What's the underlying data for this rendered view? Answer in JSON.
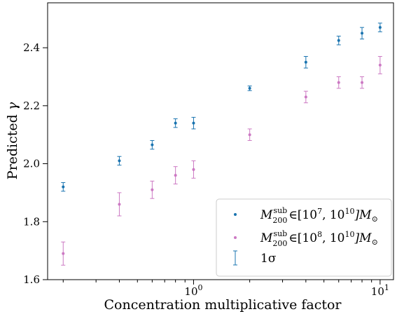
{
  "chart_data": {
    "type": "scatter",
    "xlabel": "Concentration multiplicative factor",
    "ylabel_text": "Predicted ",
    "ylabel_symbol": "γ",
    "xscale": "log",
    "xlim": [
      0.165,
      11.8
    ],
    "ylim": [
      1.6,
      2.555
    ],
    "x_tick_labels": [
      {
        "value": 1,
        "base": "10",
        "exp": "0"
      },
      {
        "value": 10,
        "base": "10",
        "exp": "1"
      }
    ],
    "y_ticks": [
      1.6,
      1.8,
      2.0,
      2.2,
      2.4
    ],
    "y_tick_labels": [
      "1.6",
      "1.8",
      "2.0",
      "2.2",
      "2.4"
    ],
    "grid": false,
    "legend_position": "lower-right",
    "series": [
      {
        "name": "M_200^sub ∈ [10^7, 10^10] M_⊙",
        "color": "#1a74b0",
        "x": [
          0.2,
          0.4,
          0.6,
          0.8,
          1.0,
          2.0,
          4.0,
          6.0,
          8.0,
          10.0
        ],
        "y": [
          1.92,
          2.01,
          2.065,
          2.14,
          2.14,
          2.26,
          2.35,
          2.425,
          2.45,
          2.47
        ],
        "err": [
          0.015,
          0.015,
          0.015,
          0.015,
          0.02,
          0.008,
          0.02,
          0.015,
          0.02,
          0.015
        ]
      },
      {
        "name": "M_200^sub ∈ [10^8, 10^10] M_⊙",
        "color": "#cc79c3",
        "x": [
          0.2,
          0.4,
          0.6,
          0.8,
          1.0,
          2.0,
          4.0,
          6.0,
          8.0,
          10.0
        ],
        "y": [
          1.69,
          1.86,
          1.91,
          1.96,
          1.98,
          2.1,
          2.23,
          2.28,
          2.28,
          2.34
        ],
        "err": [
          0.04,
          0.04,
          0.03,
          0.03,
          0.03,
          0.02,
          0.02,
          0.02,
          0.02,
          0.03
        ]
      }
    ],
    "legend": [
      {
        "kind": "point",
        "color": "#1a74b0",
        "m": "M",
        "sub": "200",
        "sup": "sub",
        "mid": "∈[10",
        "e1": "7",
        "comma": ", 10",
        "e2": "10",
        "end": "]M",
        "end_sub": "⊙"
      },
      {
        "kind": "point",
        "color": "#cc79c3",
        "m": "M",
        "sub": "200",
        "sup": "sub",
        "mid": "∈[10",
        "e1": "8",
        "comma": ", 10",
        "e2": "10",
        "end": "]M",
        "end_sub": "⊙"
      },
      {
        "kind": "errorbar",
        "color": "#1a74b0",
        "label": "1σ"
      }
    ]
  }
}
